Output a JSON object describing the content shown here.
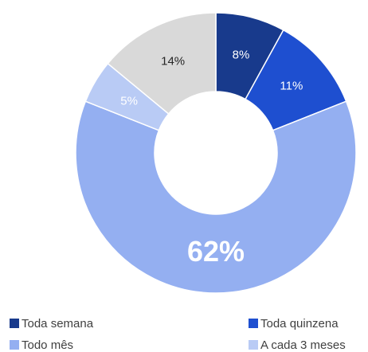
{
  "chart_data": {
    "type": "donut",
    "categories": [
      "Toda semana",
      "Toda quinzena",
      "Todo mês",
      "A cada 3 meses",
      null
    ],
    "values": [
      8,
      11,
      62,
      5,
      14
    ],
    "value_labels": [
      "8%",
      "11%",
      "62%",
      "5%",
      "14%"
    ],
    "colors": [
      "#183a8c",
      "#1e4fd0",
      "#94aff1",
      "#b9cbf5",
      "#d9d9d9"
    ],
    "label_colors": [
      "#ffffff",
      "#ffffff",
      "#ffffff",
      "#ffffff",
      "#262626"
    ],
    "legend": "bottom"
  }
}
